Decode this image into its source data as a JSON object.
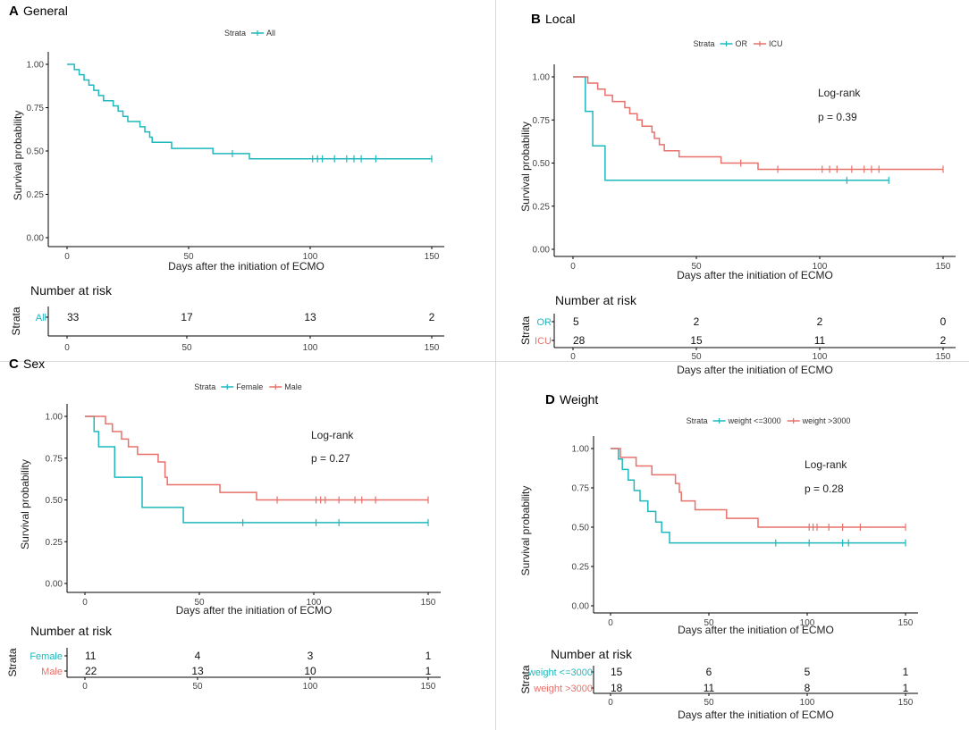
{
  "colors": {
    "teal": "#1fb8bd",
    "red": "#e8706a",
    "axis": "#000000",
    "text": "#222222",
    "tick": "#444444"
  },
  "chart_data": [
    {
      "type": "line",
      "subtype": "kaplan-meier",
      "letter": "A",
      "title": "General",
      "legend_title": "Strata",
      "legend_position": "top-center",
      "xlabel": "Days after the initiation of ECMO",
      "ylabel": "Survival probability",
      "xlim": [
        0,
        150
      ],
      "ylim": [
        0,
        1
      ],
      "xticks": [
        "0",
        "50",
        "100",
        "150"
      ],
      "yticks": [
        "0.00",
        "0.25",
        "0.50",
        "0.75",
        "1.00"
      ],
      "series": [
        {
          "name": "All",
          "color": "teal",
          "steps": [
            [
              0,
              1
            ],
            [
              3,
              0.97
            ],
            [
              5,
              0.94
            ],
            [
              7,
              0.91
            ],
            [
              9,
              0.88
            ],
            [
              11,
              0.85
            ],
            [
              13,
              0.82
            ],
            [
              15,
              0.79
            ],
            [
              19,
              0.76
            ],
            [
              21,
              0.73
            ],
            [
              23,
              0.7
            ],
            [
              25,
              0.67
            ],
            [
              30,
              0.64
            ],
            [
              32,
              0.61
            ],
            [
              34,
              0.58
            ],
            [
              35,
              0.55
            ],
            [
              43,
              0.515
            ],
            [
              60,
              0.485
            ],
            [
              75,
              0.455
            ],
            [
              150,
              0.455
            ]
          ],
          "censors": [
            68,
            101,
            103,
            105,
            110,
            115,
            118,
            121,
            127,
            150
          ]
        }
      ],
      "risk_table": {
        "title": "Number at risk",
        "ylabel": "Strata",
        "rows": [
          {
            "label": "All",
            "color": "teal",
            "values": [
              "33",
              "17",
              "13",
              "2"
            ]
          }
        ]
      }
    },
    {
      "type": "line",
      "subtype": "kaplan-meier",
      "letter": "B",
      "title": "Local",
      "legend_title": "Strata",
      "legend_position": "top-center",
      "annotation": {
        "line1": "Log-rank",
        "line2": "p = 0.39"
      },
      "xlabel": "Days after the initiation of ECMO",
      "ylabel": "Survival probability",
      "xlim": [
        0,
        150
      ],
      "ylim": [
        0,
        1
      ],
      "xticks": [
        "0",
        "50",
        "100",
        "150"
      ],
      "yticks": [
        "0.00",
        "0.25",
        "0.50",
        "0.75",
        "1.00"
      ],
      "series": [
        {
          "name": "OR",
          "color": "teal",
          "steps": [
            [
              0,
              1
            ],
            [
              5,
              0.8
            ],
            [
              8,
              0.6
            ],
            [
              13,
              0.4
            ],
            [
              128,
              0.4
            ]
          ],
          "censors": [
            111,
            128
          ]
        },
        {
          "name": "ICU",
          "color": "red",
          "steps": [
            [
              0,
              1
            ],
            [
              6,
              0.964
            ],
            [
              10,
              0.929
            ],
            [
              13,
              0.893
            ],
            [
              16,
              0.857
            ],
            [
              21,
              0.821
            ],
            [
              23,
              0.786
            ],
            [
              26,
              0.75
            ],
            [
              28,
              0.714
            ],
            [
              32,
              0.679
            ],
            [
              33,
              0.643
            ],
            [
              35,
              0.607
            ],
            [
              37,
              0.571
            ],
            [
              43,
              0.536
            ],
            [
              60,
              0.5
            ],
            [
              75,
              0.464
            ],
            [
              150,
              0.464
            ]
          ],
          "censors": [
            68,
            83,
            101,
            104,
            107,
            113,
            118,
            121,
            124,
            150
          ]
        }
      ],
      "risk_table": {
        "title": "Number at risk",
        "ylabel": "Strata",
        "rows": [
          {
            "label": "OR",
            "color": "teal",
            "values": [
              "5",
              "2",
              "2",
              "0"
            ]
          },
          {
            "label": "ICU",
            "color": "red",
            "values": [
              "28",
              "15",
              "11",
              "2"
            ]
          }
        ]
      }
    },
    {
      "type": "line",
      "subtype": "kaplan-meier",
      "letter": "C",
      "title": "Sex",
      "legend_title": "Strata",
      "legend_position": "top-center",
      "annotation": {
        "line1": "Log-rank",
        "line2": "p = 0.27"
      },
      "xlabel": "Days after the initiation of ECMO",
      "ylabel": "Survival probability",
      "xlim": [
        0,
        150
      ],
      "ylim": [
        0,
        1
      ],
      "xticks": [
        "0",
        "50",
        "100",
        "150"
      ],
      "yticks": [
        "0.00",
        "0.25",
        "0.50",
        "0.75",
        "1.00"
      ],
      "series": [
        {
          "name": "Female",
          "color": "teal",
          "steps": [
            [
              0,
              1
            ],
            [
              4,
              0.909
            ],
            [
              6,
              0.818
            ],
            [
              13,
              0.636
            ],
            [
              25,
              0.455
            ],
            [
              43,
              0.364
            ],
            [
              150,
              0.364
            ]
          ],
          "censors": [
            69,
            101,
            111,
            150
          ]
        },
        {
          "name": "Male",
          "color": "red",
          "steps": [
            [
              0,
              1
            ],
            [
              9,
              0.955
            ],
            [
              12,
              0.909
            ],
            [
              16,
              0.864
            ],
            [
              19,
              0.818
            ],
            [
              23,
              0.773
            ],
            [
              32,
              0.727
            ],
            [
              35,
              0.636
            ],
            [
              36,
              0.591
            ],
            [
              59,
              0.545
            ],
            [
              75,
              0.5
            ],
            [
              150,
              0.5
            ]
          ],
          "censors": [
            84,
            101,
            103,
            105,
            111,
            118,
            121,
            127,
            150
          ]
        }
      ],
      "risk_table": {
        "title": "Number at risk",
        "ylabel": "Strata",
        "rows": [
          {
            "label": "Female",
            "color": "teal",
            "values": [
              "11",
              "4",
              "3",
              "1"
            ]
          },
          {
            "label": "Male",
            "color": "red",
            "values": [
              "22",
              "13",
              "10",
              "1"
            ]
          }
        ]
      }
    },
    {
      "type": "line",
      "subtype": "kaplan-meier",
      "letter": "D",
      "title": "Weight",
      "legend_title": "Strata",
      "legend_position": "top-center",
      "annotation": {
        "line1": "Log-rank",
        "line2": "p = 0.28"
      },
      "xlabel": "Days after the initiation of ECMO",
      "ylabel": "Survival probability",
      "xlim": [
        0,
        150
      ],
      "ylim": [
        0,
        1
      ],
      "xticks": [
        "0",
        "50",
        "100",
        "150"
      ],
      "yticks": [
        "0.00",
        "0.25",
        "0.50",
        "0.75",
        "1.00"
      ],
      "series": [
        {
          "name": "weight <=3000",
          "color": "teal",
          "steps": [
            [
              0,
              1
            ],
            [
              4,
              0.933
            ],
            [
              6,
              0.867
            ],
            [
              9,
              0.8
            ],
            [
              12,
              0.733
            ],
            [
              15,
              0.667
            ],
            [
              19,
              0.6
            ],
            [
              23,
              0.533
            ],
            [
              26,
              0.467
            ],
            [
              30,
              0.4
            ],
            [
              150,
              0.4
            ]
          ],
          "censors": [
            84,
            101,
            118,
            121,
            150
          ]
        },
        {
          "name": "weight >3000",
          "color": "red",
          "steps": [
            [
              0,
              1
            ],
            [
              5,
              0.944
            ],
            [
              13,
              0.889
            ],
            [
              21,
              0.833
            ],
            [
              33,
              0.778
            ],
            [
              35,
              0.722
            ],
            [
              36,
              0.667
            ],
            [
              43,
              0.611
            ],
            [
              59,
              0.556
            ],
            [
              75,
              0.5
            ],
            [
              150,
              0.5
            ]
          ],
          "censors": [
            101,
            103,
            105,
            111,
            118,
            127,
            150
          ]
        }
      ],
      "risk_table": {
        "title": "Number at risk",
        "ylabel": "Strata",
        "rows": [
          {
            "label": "weight <=3000",
            "color": "teal",
            "values": [
              "15",
              "6",
              "5",
              "1"
            ]
          },
          {
            "label": "weight >3000",
            "color": "red",
            "values": [
              "18",
              "11",
              "8",
              "1"
            ]
          }
        ]
      }
    }
  ]
}
